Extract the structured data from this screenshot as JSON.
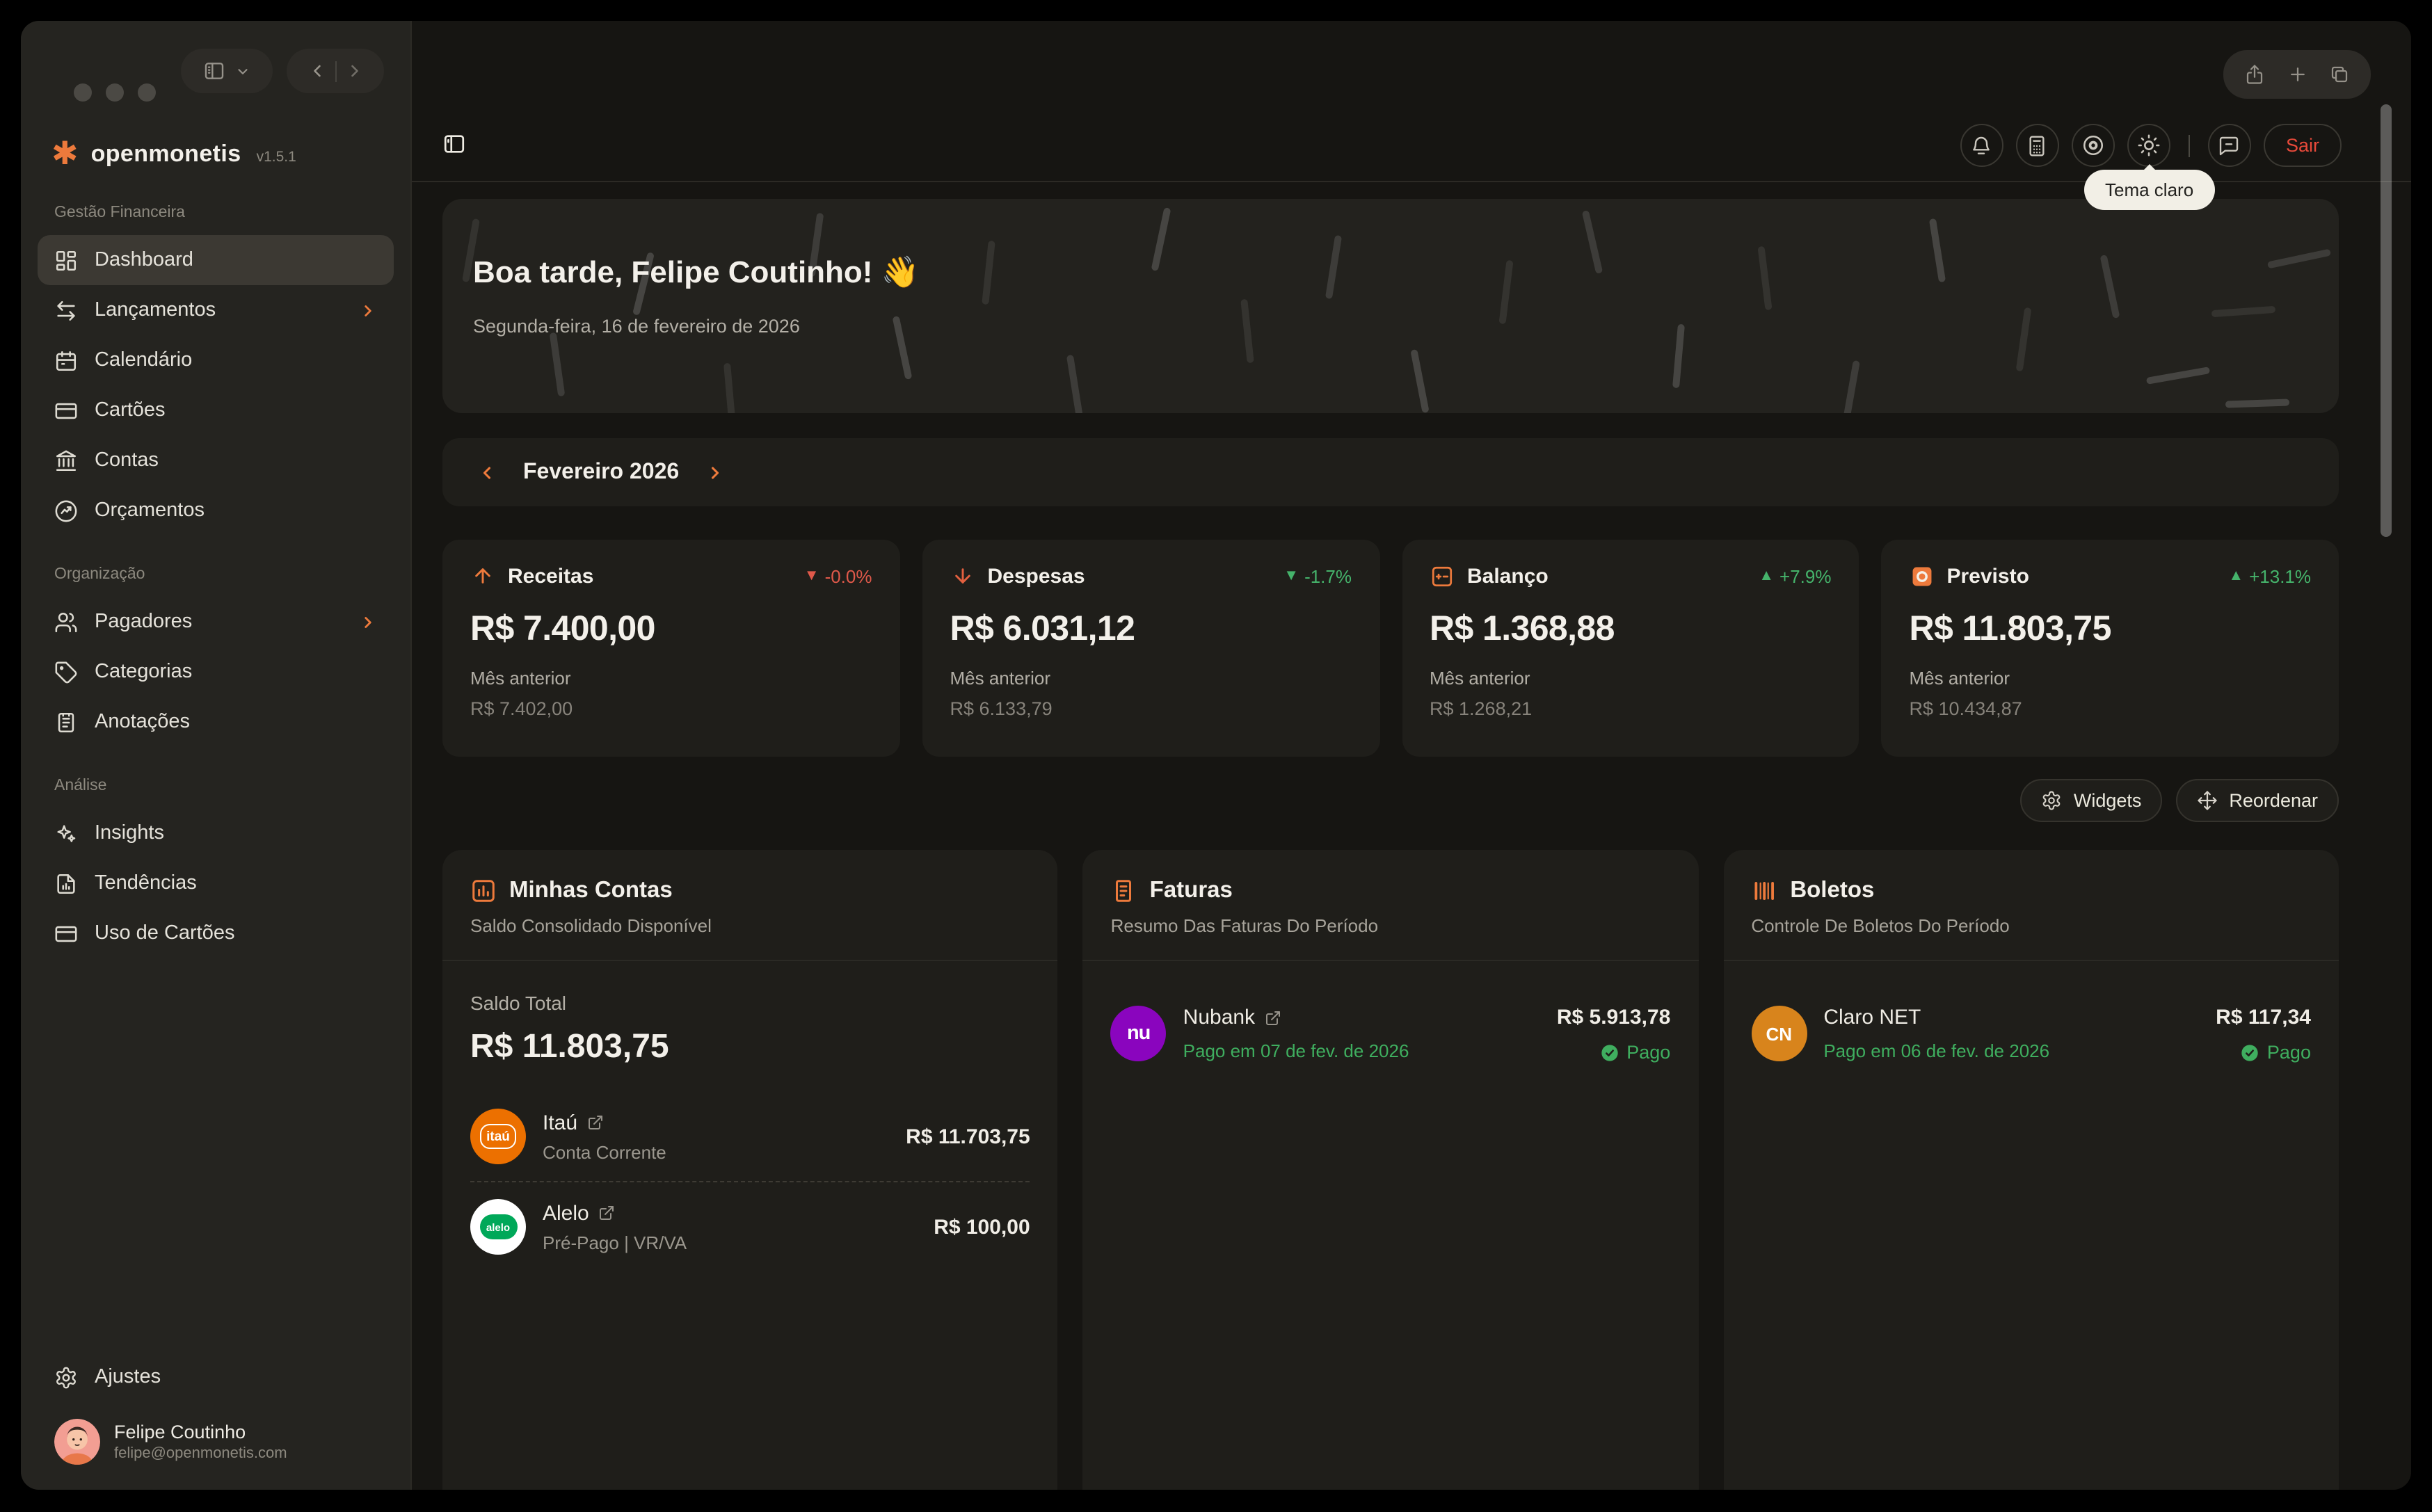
{
  "sidebar": {
    "brand": {
      "name": "openmonetis",
      "version": "v1.5.1"
    },
    "sections": [
      {
        "label": "Gestão Financeira",
        "items": [
          {
            "label": "Dashboard"
          },
          {
            "label": "Lançamentos"
          },
          {
            "label": "Calendário"
          },
          {
            "label": "Cartões"
          },
          {
            "label": "Contas"
          },
          {
            "label": "Orçamentos"
          }
        ]
      },
      {
        "label": "Organização",
        "items": [
          {
            "label": "Pagadores"
          },
          {
            "label": "Categorias"
          },
          {
            "label": "Anotações"
          }
        ]
      },
      {
        "label": "Análise",
        "items": [
          {
            "label": "Insights"
          },
          {
            "label": "Tendências"
          },
          {
            "label": "Uso de Cartões"
          }
        ]
      }
    ],
    "settings_label": "Ajustes",
    "user": {
      "name": "Felipe Coutinho",
      "email": "felipe@openmonetis.com"
    }
  },
  "header": {
    "tooltip": "Tema claro",
    "logout_label": "Sair"
  },
  "hero": {
    "greeting": "Boa tarde, Felipe Coutinho! 👋",
    "date": "Segunda-feira, 16 de fevereiro de 2026"
  },
  "period": {
    "label": "Fevereiro 2026"
  },
  "stats": [
    {
      "title": "Receitas",
      "delta": "-0.0%",
      "direction": "down",
      "trend": "negative",
      "value": "R$ 7.400,00",
      "previous_label": "Mês anterior",
      "previous_value": "R$ 7.402,00"
    },
    {
      "title": "Despesas",
      "delta": "-1.7%",
      "direction": "down",
      "trend": "positive",
      "value": "R$ 6.031,12",
      "previous_label": "Mês anterior",
      "previous_value": "R$ 6.133,79"
    },
    {
      "title": "Balanço",
      "delta": "+7.9%",
      "direction": "up",
      "trend": "positive",
      "value": "R$ 1.368,88",
      "previous_label": "Mês anterior",
      "previous_value": "R$ 1.268,21"
    },
    {
      "title": "Previsto",
      "delta": "+13.1%",
      "direction": "up",
      "trend": "positive",
      "value": "R$ 11.803,75",
      "previous_label": "Mês anterior",
      "previous_value": "R$ 10.434,87"
    }
  ],
  "actions": {
    "widgets_label": "Widgets",
    "reorder_label": "Reordenar"
  },
  "widgets": {
    "accounts": {
      "title": "Minhas Contas",
      "subtitle": "Saldo Consolidado Disponível",
      "total_label": "Saldo Total",
      "total_value": "R$ 11.803,75",
      "rows": [
        {
          "name": "Itaú",
          "detail": "Conta Corrente",
          "value": "R$ 11.703,75",
          "logo_text": "itaú"
        },
        {
          "name": "Alelo",
          "detail": "Pré-Pago | VR/VA",
          "value": "R$ 100,00",
          "logo_text": "alelo"
        }
      ]
    },
    "invoices": {
      "title": "Faturas",
      "subtitle": "Resumo Das Faturas Do Período",
      "rows": [
        {
          "name": "Nubank",
          "status_date": "Pago em 07 de fev. de 2026",
          "value": "R$ 5.913,78",
          "status": "Pago",
          "logo_text": "nu"
        }
      ]
    },
    "bills": {
      "title": "Boletos",
      "subtitle": "Controle De Boletos Do Período",
      "rows": [
        {
          "name": "Claro NET",
          "status_date": "Pago em 06 de fev. de 2026",
          "value": "R$ 117,34",
          "status": "Pago",
          "logo_text": "CN"
        }
      ]
    }
  },
  "colors": {
    "accent": "#ED7A3C",
    "negative": "#E0594A",
    "positive": "#45B36B",
    "paid_green": "#3FAE5F",
    "nubank_purple": "#8A05BE",
    "itau_orange": "#EC7000",
    "alelo_green": "#00A859",
    "claro_amber": "#D8841C"
  }
}
